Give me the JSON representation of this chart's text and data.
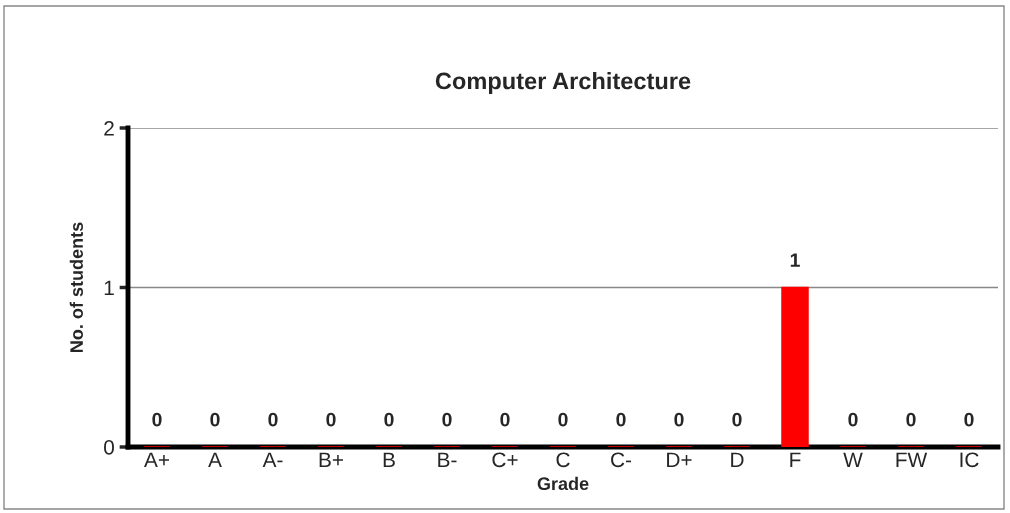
{
  "chart_data": {
    "type": "bar",
    "title": "Computer Architecture",
    "xlabel": "Grade",
    "ylabel": "No. of students",
    "categories": [
      "A+",
      "A",
      "A-",
      "B+",
      "B",
      "B-",
      "C+",
      "C",
      "C-",
      "D+",
      "D",
      "F",
      "W",
      "FW",
      "IC"
    ],
    "values": [
      0,
      0,
      0,
      0,
      0,
      0,
      0,
      0,
      0,
      0,
      0,
      1,
      0,
      0,
      0
    ],
    "color": "#ff0000",
    "ylim": [
      0,
      2
    ],
    "yticks": [
      0,
      1,
      2
    ],
    "grid": "y",
    "data_labels": true,
    "legend": false
  }
}
